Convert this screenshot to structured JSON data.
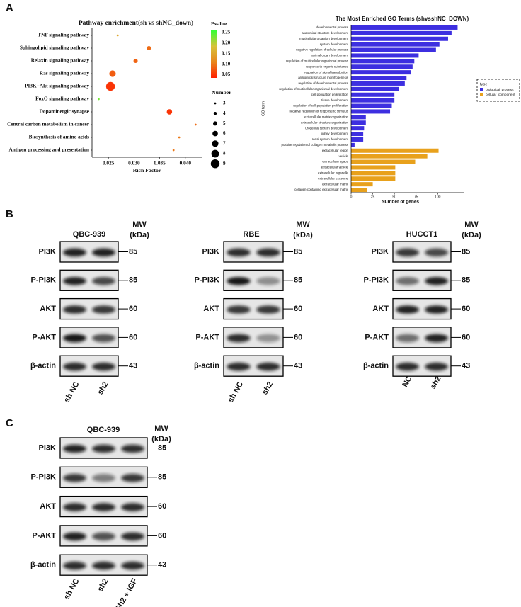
{
  "panel_labels": [
    "A",
    "B",
    "C"
  ],
  "chart_data": [
    {
      "type": "scatter",
      "title": "Pathway enrichment(sh vs shNC_down)",
      "x_label": "Rich Factor",
      "categories": [
        "TNF signaling pathway",
        "Sphingolipid signaling pathway",
        "Relaxin signaling pathway",
        "Ras signaling pathway",
        "PI3K−Akt signaling pathway",
        "FoxO signaling pathway",
        "Dopaminergic synapse",
        "Central carbon metabolism in cancer",
        "Biosynthesis of amino acids",
        "Antigen processing and presentation"
      ],
      "x": [
        0.0268,
        0.0329,
        0.0303,
        0.0258,
        0.0254,
        0.0231,
        0.0369,
        0.042,
        0.0388,
        0.0377
      ],
      "sizes": [
        3,
        5,
        5,
        7,
        9,
        3,
        6,
        3,
        3,
        3
      ],
      "pvalues": [
        0.15,
        0.09,
        0.085,
        0.08,
        0.05,
        0.23,
        0.05,
        0.09,
        0.1,
        0.1
      ],
      "xlim": [
        0.0218,
        0.0432
      ],
      "xticks": [
        0.025,
        {
          "value": 0.03,
          "label": "0.030"
        },
        0.035,
        {
          "value": 0.04,
          "label": "0.040"
        }
      ],
      "color_scale": {
        "label": "Pvalue",
        "lim": [
          0.035,
          0.26
        ],
        "colors": [
          "#ff2000",
          "#e8861c",
          "#d6c23a",
          "#33ff33"
        ],
        "ticks": [
          0.25,
          {
            "value": 0.2,
            "label": "0.20"
          },
          0.15,
          {
            "value": 0.1,
            "label": "0.10"
          },
          0.05
        ]
      },
      "size_legend": {
        "label": "Number",
        "values": [
          3,
          4,
          5,
          6,
          7,
          8,
          9
        ]
      }
    },
    {
      "type": "bar",
      "orientation": "horizontal",
      "title": "The Most Enriched GO Terms (shvsshNC_DOWN)",
      "x_label": "Number of genes",
      "y_label": "GO term",
      "categories": [
        "developmental process",
        "anatomical structure development",
        "multicellular organism development",
        "system development",
        "negative regulation of cellular process",
        "animal organ development",
        "regulation of multicellular organismal process",
        "response to organic substance",
        "regulation of signal transduction",
        "anatomical structure morphogenesis",
        "regulation of developmental process",
        "regulation of multicellular organismal development",
        "cell population proliferation",
        "tissue development",
        "regulation of cell population proliferation",
        "negative regulation of response to stimulus",
        "extracellular matrix organization",
        "extracellular structure organization",
        "urogenital system development",
        "kidney development",
        "renal system development",
        "positive regulation of collagen metabolic process",
        "extracellular region",
        "vesicle",
        "extracellular space",
        "extracellular vesicle",
        "extracellular organelle",
        "extracellular exosome",
        "extracellular matrix",
        "collagen-containing extracellular matrix"
      ],
      "series": [
        {
          "name": "biological_process",
          "color": "#3d2fe0",
          "values": [
            123,
            116,
            112,
            102,
            98,
            78,
            73,
            71,
            69,
            64,
            62,
            55,
            50,
            50,
            47,
            45,
            17,
            17,
            15,
            14,
            14,
            4,
            null,
            null,
            null,
            null,
            null,
            null,
            null,
            null
          ]
        },
        {
          "name": "cellular_component",
          "color": "#e8a11c",
          "values": [
            null,
            null,
            null,
            null,
            null,
            null,
            null,
            null,
            null,
            null,
            null,
            null,
            null,
            null,
            null,
            null,
            null,
            null,
            null,
            null,
            null,
            null,
            101,
            88,
            74,
            51,
            51,
            51,
            25,
            18
          ]
        }
      ],
      "xlim": [
        0,
        130
      ],
      "xticks": [
        0,
        25,
        50,
        75,
        100
      ],
      "legend_title": "type",
      "legend_position": "right"
    }
  ],
  "blots": [
    {
      "title": "QBC-939",
      "mw_label": "MW",
      "mw_unit": "(kDa)",
      "rows": [
        {
          "label": "PI3K",
          "mw": 85
        },
        {
          "label": "P-PI3K",
          "mw": 85
        },
        {
          "label": "AKT",
          "mw": 60
        },
        {
          "label": "P-AKT",
          "mw": 60
        },
        {
          "label": "β-actin",
          "mw": 43
        }
      ],
      "lanes": [
        "sh NC",
        "sh2"
      ]
    },
    {
      "title": "RBE",
      "mw_label": "MW",
      "mw_unit": "(kDa)",
      "rows": [
        {
          "label": "PI3K",
          "mw": 85
        },
        {
          "label": "P-PI3K",
          "mw": 85
        },
        {
          "label": "AKT",
          "mw": 60
        },
        {
          "label": "P-AKT",
          "mw": 60
        },
        {
          "label": "β-actin",
          "mw": 43
        }
      ],
      "lanes": [
        "sh NC",
        "sh2"
      ]
    },
    {
      "title": "HUCCT1",
      "mw_label": "MW",
      "mw_unit": "(kDa)",
      "rows": [
        {
          "label": "PI3K",
          "mw": 85
        },
        {
          "label": "P-PI3K",
          "mw": 85
        },
        {
          "label": "AKT",
          "mw": 60
        },
        {
          "label": "P-AKT",
          "mw": 60
        },
        {
          "label": "β-actin",
          "mw": 43
        }
      ],
      "lanes": [
        "NC",
        "sh2"
      ]
    },
    {
      "title": "QBC-939",
      "mw_label": "MW",
      "mw_unit": "(kDa)",
      "rows": [
        {
          "label": "PI3K",
          "mw": 85
        },
        {
          "label": "P-PI3K",
          "mw": 85
        },
        {
          "label": "AKT",
          "mw": 60
        },
        {
          "label": "P-AKT",
          "mw": 60
        },
        {
          "label": "β-actin",
          "mw": 43
        }
      ],
      "lanes": [
        "sh NC",
        "sh2",
        "Sh2 + IGF"
      ]
    }
  ]
}
